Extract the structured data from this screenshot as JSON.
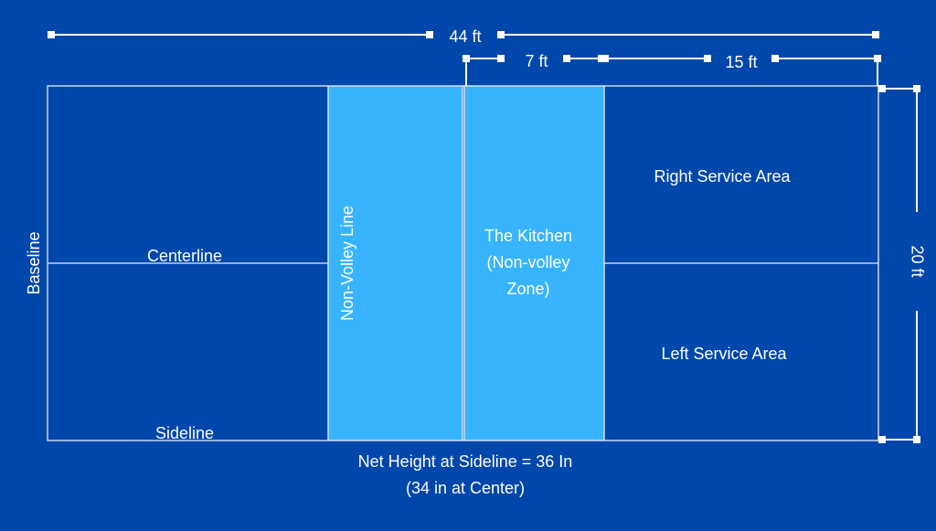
{
  "colors": {
    "background": "#0047AB",
    "zone": "#38B4FF",
    "lines": "#FFFFFF"
  },
  "dimensions": {
    "length": "44 ft",
    "kitchen_width": "7 ft",
    "service_length": "15 ft",
    "width": "20 ft"
  },
  "labels": {
    "baseline": "Baseline",
    "centerline": "Centerline",
    "sideline": "Sideline",
    "non_volley_line": "Non-Volley Line",
    "kitchen": "The Kitchen (Non-volley Zone)",
    "right_service": "Right Service Area",
    "left_service": "Left Service Area"
  },
  "net_note": {
    "line1": "Net Height at Sideline = 36 In",
    "line2": "(34 in at Center)"
  }
}
